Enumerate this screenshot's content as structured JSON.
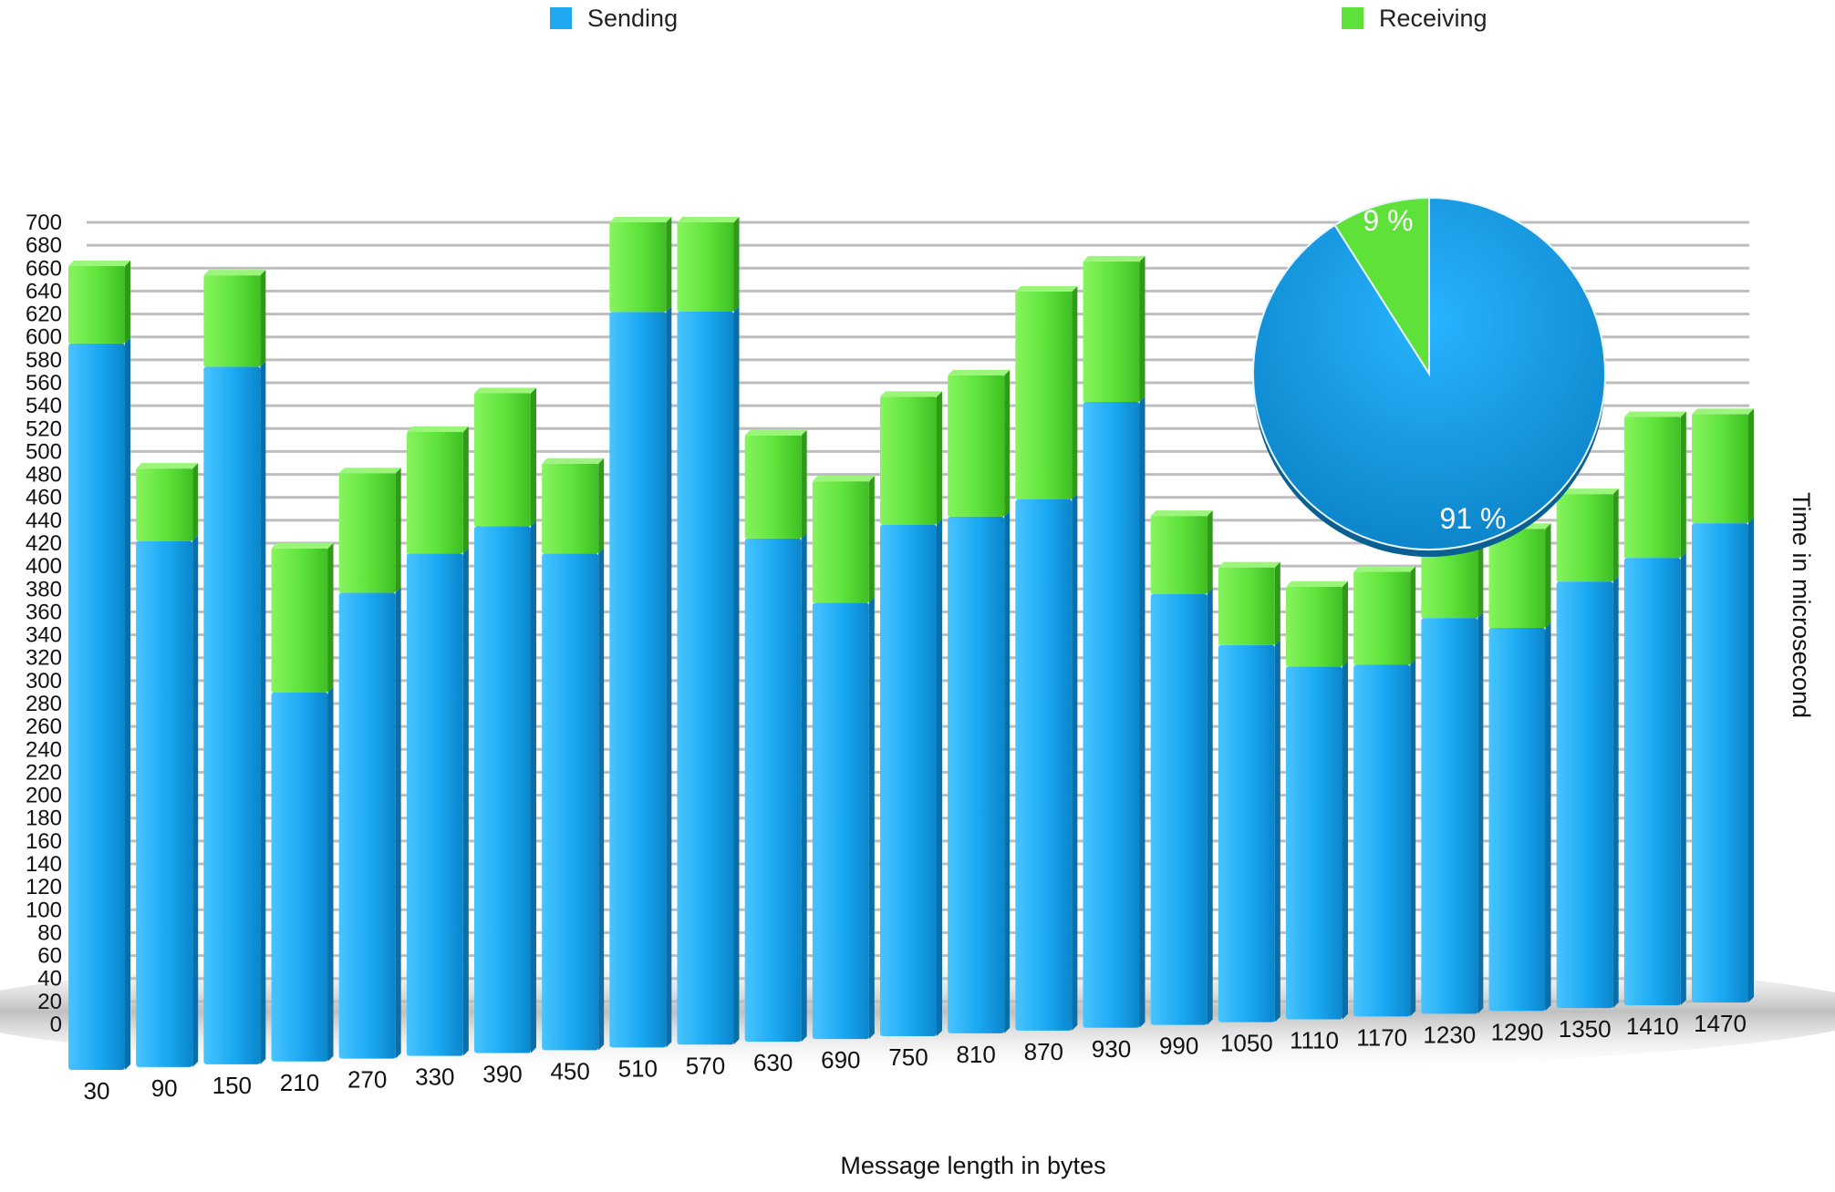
{
  "chart_data": [
    {
      "type": "bar",
      "stacked": true,
      "categories": [
        "30",
        "90",
        "150",
        "210",
        "270",
        "330",
        "390",
        "450",
        "510",
        "570",
        "630",
        "690",
        "750",
        "810",
        "870",
        "930",
        "990",
        "1050",
        "1110",
        "1170",
        "1230",
        "1290",
        "1350",
        "1410",
        "1470"
      ],
      "series": [
        {
          "name": "Sending",
          "color": "#1ea8f0",
          "values": [
            600,
            436,
            580,
            308,
            390,
            422,
            444,
            420,
            624,
            624,
            430,
            374,
            440,
            446,
            460,
            544,
            376,
            330,
            310,
            310,
            350,
            340,
            380,
            400,
            430
          ]
        },
        {
          "name": "Receiving",
          "color": "#5ee23a",
          "values": [
            64,
            60,
            76,
            120,
            100,
            102,
            112,
            76,
            76,
            76,
            88,
            104,
            110,
            122,
            180,
            122,
            68,
            68,
            70,
            82,
            70,
            88,
            78,
            126,
            98
          ]
        }
      ],
      "ylim": [
        0,
        700
      ],
      "yticks": [
        0,
        20,
        40,
        60,
        80,
        100,
        120,
        140,
        160,
        180,
        200,
        220,
        240,
        260,
        280,
        300,
        320,
        340,
        360,
        380,
        400,
        420,
        440,
        460,
        480,
        500,
        520,
        540,
        560,
        580,
        600,
        620,
        640,
        660,
        680,
        700
      ],
      "xlabel": "Message length in bytes",
      "ylabel": "Time in microsecond",
      "grid": true,
      "legend_position": "top"
    },
    {
      "type": "pie",
      "labels": [
        "Sending",
        "Receiving"
      ],
      "values": [
        91,
        9
      ],
      "value_labels": [
        "91 %",
        "9 %"
      ],
      "colors": [
        "#1ea8f0",
        "#5ee23a"
      ]
    }
  ],
  "legend": {
    "items": [
      {
        "label": "Sending",
        "color": "#1ea8f0"
      },
      {
        "label": "Receiving",
        "color": "#5ee23a"
      }
    ]
  }
}
